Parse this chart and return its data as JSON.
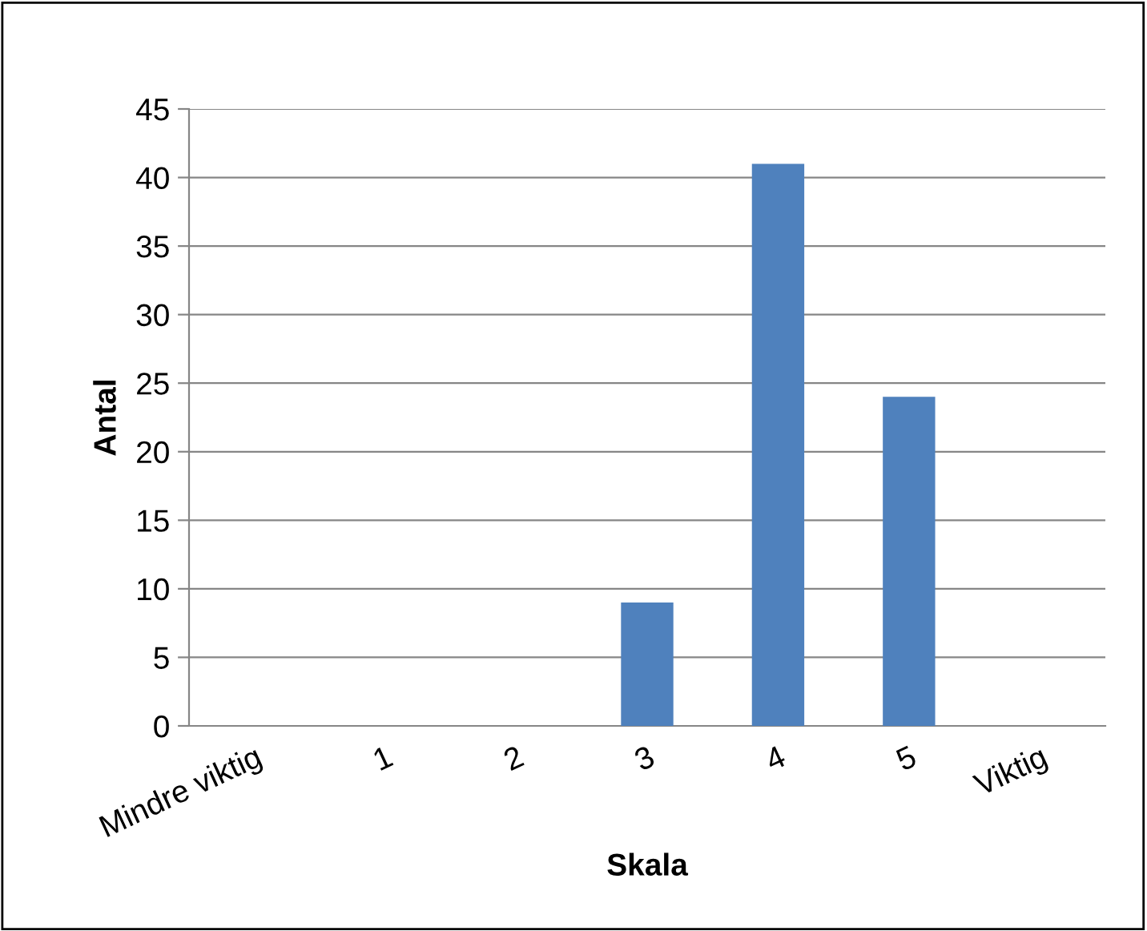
{
  "chart_data": {
    "type": "bar",
    "xlabel": "Skala",
    "ylabel": "Antal",
    "categories": [
      "Mindre viktig",
      "1",
      "2",
      "3",
      "4",
      "5",
      "Viktig"
    ],
    "values": [
      0,
      0,
      0,
      9,
      41,
      24,
      0
    ],
    "color": "#4f81bd",
    "ylim": [
      0,
      45
    ],
    "yticks": [
      0,
      5,
      10,
      15,
      20,
      25,
      30,
      35,
      40,
      45
    ],
    "grid": "y"
  }
}
